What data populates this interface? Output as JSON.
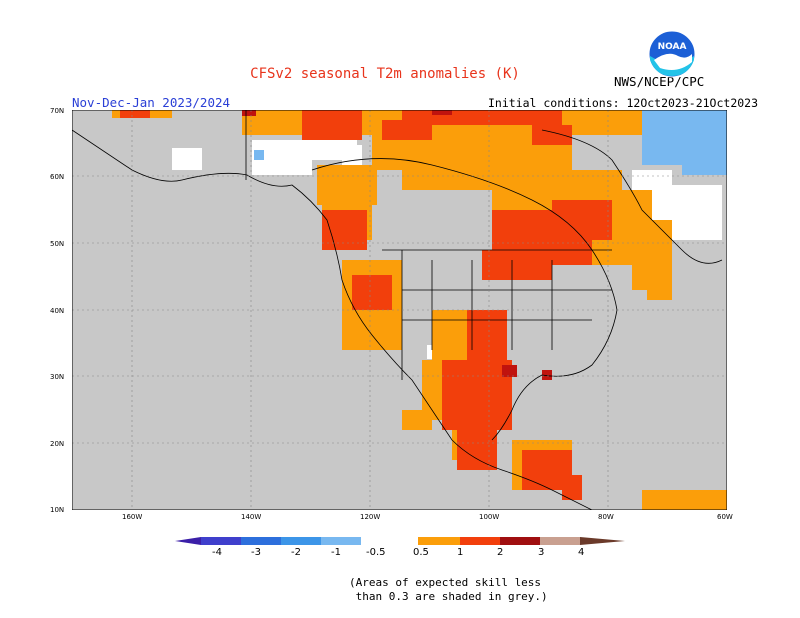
{
  "title": "CFSv2 seasonal T2m anomalies (K)",
  "org": "NWS/NCEP/CPC",
  "logo_text": "NOAA",
  "season": "Nov-Dec-Jan 2023/2024",
  "initial_conditions": "Initial conditions: 12Oct2023-21Oct2023",
  "lat_labels": [
    "70N",
    "60N",
    "50N",
    "40N",
    "30N",
    "20N",
    "10N"
  ],
  "lon_labels": [
    "160W",
    "140W",
    "120W",
    "100W",
    "80W",
    "60W"
  ],
  "colorbar": {
    "labels": [
      "-4",
      "-3",
      "-2",
      "-1",
      "-0.5",
      "0.5",
      "1",
      "2",
      "3",
      "4"
    ],
    "colors_cool": [
      "#3b1fa8",
      "#3f52cc",
      "#2d7fdc",
      "#4ba6ee",
      "#8cc9f4"
    ],
    "color_neutral": "#ffffff",
    "colors_warm": [
      "#fbc85a",
      "#f8920a",
      "#f2400c",
      "#d01010",
      "#a00f10",
      "#c9a090",
      "#6b3a2a"
    ]
  },
  "note_line1": "(Areas of expected skill less",
  "note_line2": " than 0.3 are shaded in grey.)",
  "colors": {
    "low_skill_grey": "#c8c8c8",
    "warm_0_5_1": "#fb9e0a",
    "warm_1_2": "#f23f0c",
    "warm_2_3": "#c0130e",
    "cool_0_5_1": "#78b8f0",
    "neutral": "#ffffff"
  }
}
